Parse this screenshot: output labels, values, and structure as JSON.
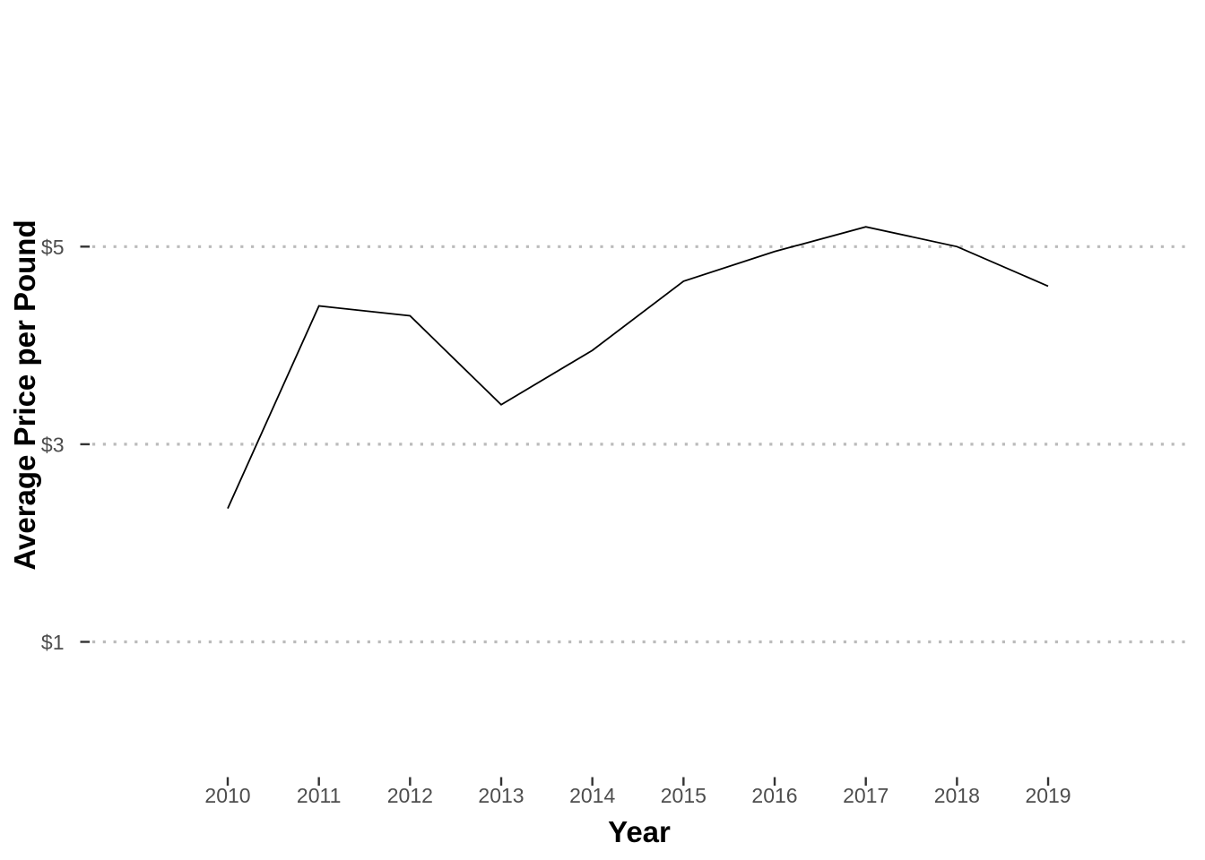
{
  "chart_data": {
    "type": "line",
    "title": "",
    "xlabel": "Year",
    "ylabel": "Average Price per Pound",
    "x": [
      2010,
      2011,
      2012,
      2013,
      2014,
      2015,
      2016,
      2017,
      2018,
      2019
    ],
    "x_tick_labels": [
      "2010",
      "2011",
      "2012",
      "2013",
      "2014",
      "2015",
      "2016",
      "2017",
      "2018",
      "2019"
    ],
    "series": [
      {
        "name": "average-price-per-pound",
        "values": [
          2.35,
          4.4,
          4.3,
          3.4,
          3.95,
          4.65,
          4.95,
          5.2,
          5.0,
          4.6
        ]
      }
    ],
    "yticks": [
      {
        "value": 1,
        "label": "$1"
      },
      {
        "value": 3,
        "label": "$3"
      },
      {
        "value": 5,
        "label": "$5"
      }
    ],
    "ylim": [
      -0.35,
      7.3
    ],
    "xlim": [
      2008.5,
      2020.5
    ],
    "grid": "horizontal-major-dotted-only",
    "legend_position": "none",
    "colors": {
      "line": "#000000",
      "gridline": "#BBBBBB",
      "tick_mark": "#333333",
      "axis_text": "#4D4D4D",
      "axis_title": "#000000",
      "background": "#FFFFFF"
    }
  }
}
